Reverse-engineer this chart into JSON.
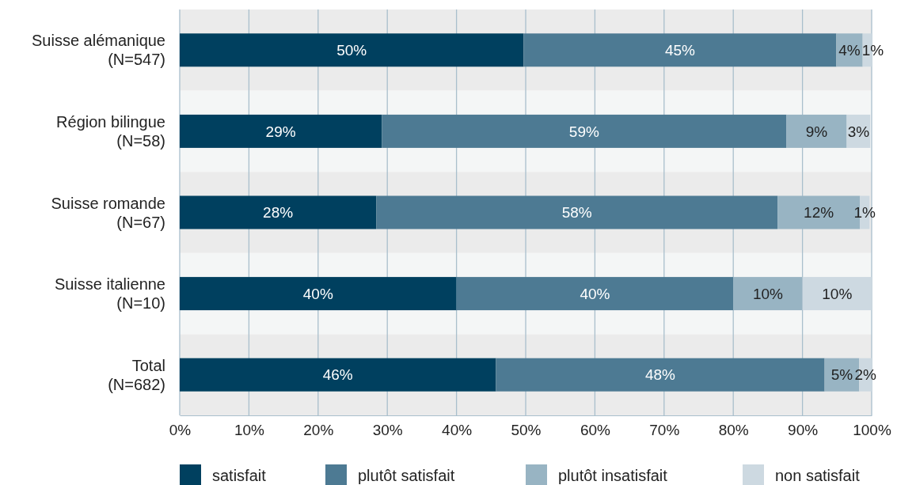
{
  "chart_data": {
    "type": "bar",
    "orientation": "horizontal",
    "stacked": true,
    "categories": [
      "Suisse alémanique\n(N=547)",
      "Région bilingue\n(N=58)",
      "Suisse romande\n(N=67)",
      "Suisse italienne\n(N=10)",
      "Total\n(N=682)"
    ],
    "series": [
      {
        "name": "satisfait",
        "color": "#00405f",
        "values": [
          49.7,
          29.2,
          28.4,
          40,
          45.7
        ],
        "value_labels": [
          "50%",
          "29%",
          "28%",
          "40%",
          "46%"
        ]
      },
      {
        "name": "plutôt satisfait",
        "color": "#4d7a93",
        "values": [
          45.2,
          58.5,
          58,
          40,
          47.5
        ],
        "value_labels": [
          "45%",
          "59%",
          "58%",
          "40%",
          "48%"
        ]
      },
      {
        "name": "plutôt insatisfait",
        "color": "#98b4c3",
        "values": [
          3.8,
          8.7,
          11.9,
          10,
          5
        ],
        "value_labels": [
          "4%",
          "9%",
          "12%",
          "10%",
          "5%"
        ]
      },
      {
        "name": "non satisfait",
        "color": "#cdd9e1",
        "values": [
          1.3,
          3.4,
          1.4,
          10,
          1.8
        ],
        "value_labels": [
          "1%",
          "3%",
          "1%",
          "10%",
          "2%"
        ]
      }
    ],
    "xlim": [
      0,
      100
    ],
    "xticks": [
      {
        "value": 0,
        "label": "0%"
      },
      {
        "value": 10,
        "label": "10%"
      },
      {
        "value": 20,
        "label": "20%"
      },
      {
        "value": 30,
        "label": "30%"
      },
      {
        "value": 40,
        "label": "40%"
      },
      {
        "value": 50,
        "label": "50%"
      },
      {
        "value": 60,
        "label": "60%"
      },
      {
        "value": 70,
        "label": "70%"
      },
      {
        "value": 80,
        "label": "80%"
      },
      {
        "value": 90,
        "label": "90%"
      },
      {
        "value": 100,
        "label": "100%"
      }
    ],
    "grid": "x",
    "legend": "bottom"
  }
}
